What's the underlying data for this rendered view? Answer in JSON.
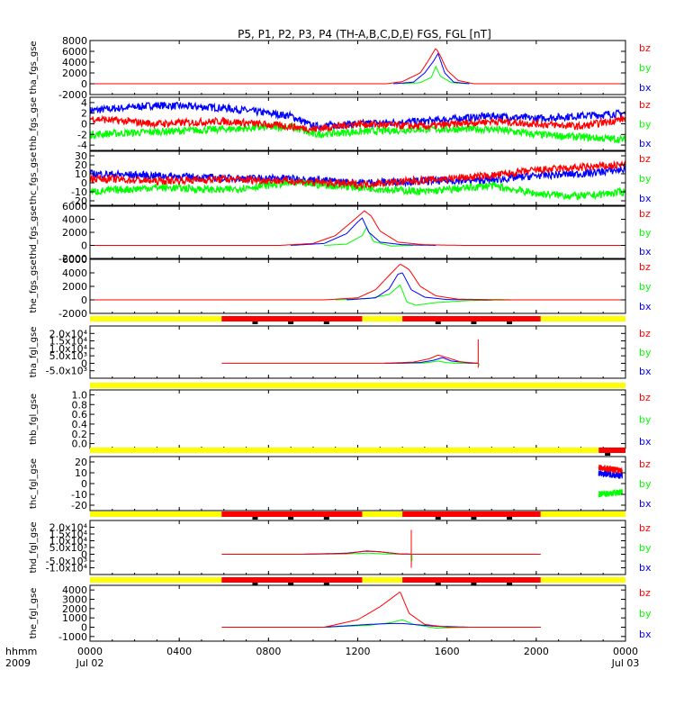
{
  "chart_data": {
    "type": "line",
    "title": "P5, P1, P2, P3, P4 (TH-A,B,C,D,E) FGS, FGL [nT]",
    "x_axis": {
      "corner_labels": [
        "hhmm",
        "2009"
      ],
      "ticks": [
        {
          "t": 0,
          "l1": "0000",
          "l2": "Jul 02"
        },
        {
          "t": 4,
          "l1": "0400",
          "l2": ""
        },
        {
          "t": 8,
          "l1": "0800",
          "l2": ""
        },
        {
          "t": 12,
          "l1": "1200",
          "l2": ""
        },
        {
          "t": 16,
          "l1": "1600",
          "l2": ""
        },
        {
          "t": 20,
          "l1": "2000",
          "l2": ""
        },
        {
          "t": 24,
          "l1": "0000",
          "l2": "Jul 03"
        }
      ],
      "xlim": [
        0,
        24
      ]
    },
    "colors": {
      "bz": "#ff0000",
      "by": "#00ff00",
      "bx": "#0000ff",
      "flag_yellow": "#ffff00",
      "flag_red": "#ff0000"
    },
    "legend": [
      "bz",
      "by",
      "bx"
    ],
    "panels": [
      {
        "label": "tha_fgs_gse",
        "ylim": [
          -2000,
          8000
        ],
        "yticks": [
          "8000",
          "6000",
          "4000",
          "2000",
          "0",
          "-2000"
        ],
        "ytick_values": [
          8000,
          6000,
          4000,
          2000,
          0,
          -2000
        ],
        "kind": "peak",
        "series": [
          {
            "name": "bz",
            "t": [
              13.3,
              14.0,
              14.8,
              15.2,
              15.5,
              15.7,
              16.0,
              16.5,
              17.2
            ],
            "y": [
              0,
              400,
              2000,
              4500,
              6600,
              5200,
              2500,
              600,
              0
            ]
          },
          {
            "name": "bx",
            "t": [
              13.6,
              14.5,
              15.0,
              15.4,
              15.6,
              15.9,
              16.3,
              17.0
            ],
            "y": [
              0,
              300,
              2000,
              4200,
              5600,
              2000,
              300,
              0
            ]
          },
          {
            "name": "by",
            "t": [
              14.0,
              14.8,
              15.3,
              15.5,
              15.7,
              16.2,
              17.0
            ],
            "y": [
              0,
              200,
              1200,
              3200,
              1400,
              200,
              0
            ]
          }
        ]
      },
      {
        "label": "thb_fgs_gse",
        "ylim": [
          -5,
          5
        ],
        "yticks": [
          "4",
          "2",
          "0",
          "-2",
          "-4"
        ],
        "ytick_values": [
          4,
          2,
          0,
          -2,
          -4
        ],
        "kind": "noise",
        "series": [
          {
            "name": "bx",
            "t": [
              0,
              3,
              6,
              9,
              10,
              12,
              15,
              18,
              20,
              22,
              24
            ],
            "y": [
              2.5,
              3.5,
              3,
              1.5,
              -0.5,
              0,
              0.5,
              1.5,
              1,
              1.5,
              2
            ]
          },
          {
            "name": "by",
            "t": [
              0,
              3,
              6,
              9,
              10,
              12,
              15,
              18,
              20,
              22,
              24
            ],
            "y": [
              -2,
              -1.5,
              -1,
              -0.5,
              -2,
              -1.5,
              -1,
              -1,
              -2,
              -2.5,
              -3
            ]
          },
          {
            "name": "bz",
            "t": [
              0,
              3,
              6,
              9,
              10,
              12,
              15,
              18,
              20,
              22,
              24
            ],
            "y": [
              1,
              0,
              0.5,
              -0.5,
              -1,
              0,
              -0.5,
              0.5,
              0,
              -0.5,
              1
            ]
          }
        ]
      },
      {
        "label": "thc_fgs_gse",
        "ylim": [
          -25,
          35
        ],
        "yticks": [
          "30",
          "20",
          "10",
          "0",
          "-10",
          "-20"
        ],
        "ytick_values": [
          30,
          20,
          10,
          0,
          -10,
          -20
        ],
        "kind": "noise",
        "series": [
          {
            "name": "bx",
            "t": [
              0,
              3,
              6,
              9,
              12,
              15,
              18,
              20,
              22,
              24
            ],
            "y": [
              10,
              8,
              5,
              5,
              0,
              2,
              3,
              8,
              10,
              15
            ]
          },
          {
            "name": "by",
            "t": [
              0,
              3,
              6,
              9,
              12,
              15,
              18,
              20,
              22,
              24
            ],
            "y": [
              -10,
              -5,
              -8,
              0,
              -5,
              -10,
              -3,
              -12,
              -15,
              -10
            ]
          },
          {
            "name": "bz",
            "t": [
              0,
              3,
              6,
              9,
              12,
              15,
              18,
              20,
              22,
              24
            ],
            "y": [
              5,
              2,
              4,
              2,
              -2,
              3,
              8,
              14,
              17,
              20
            ]
          }
        ]
      },
      {
        "label": "thd_fgs_gse",
        "ylim": [
          -2000,
          6000
        ],
        "yticks": [
          "6000",
          "4000",
          "2000",
          "0",
          "-2000"
        ],
        "ytick_values": [
          6000,
          4000,
          2000,
          0,
          -2000
        ],
        "kind": "peak",
        "series": [
          {
            "name": "bz",
            "t": [
              8.5,
              10.0,
              11.0,
              11.8,
              12.3,
              12.6,
              13.0,
              13.8,
              15.0,
              16.8
            ],
            "y": [
              0,
              300,
              1500,
              3800,
              5300,
              4500,
              2200,
              500,
              100,
              0
            ]
          },
          {
            "name": "bx",
            "t": [
              9.0,
              10.5,
              11.5,
              12.0,
              12.2,
              12.5,
              13.0,
              14.0,
              15.5
            ],
            "y": [
              0,
              300,
              1800,
              3600,
              4200,
              2000,
              500,
              100,
              0
            ]
          },
          {
            "name": "by",
            "t": [
              10.5,
              11.5,
              12.2,
              12.4,
              12.7,
              13.5,
              14.5
            ],
            "y": [
              0,
              200,
              1500,
              2800,
              600,
              -100,
              0
            ]
          }
        ]
      },
      {
        "label": "the_fgs_gse",
        "ylim": [
          -2000,
          6000
        ],
        "yticks": [
          "6000",
          "4000",
          "2000",
          "0",
          "-2000"
        ],
        "ytick_values": [
          6000,
          4000,
          2000,
          0,
          -2000
        ],
        "kind": "peak",
        "series": [
          {
            "name": "bz",
            "t": [
              10.5,
              12.0,
              12.8,
              13.4,
              13.9,
              14.3,
              14.8,
              15.5,
              16.5,
              19.0
            ],
            "y": [
              0,
              300,
              1500,
              3600,
              5300,
              4500,
              2000,
              600,
              100,
              0
            ]
          },
          {
            "name": "bx",
            "t": [
              11.5,
              12.8,
              13.4,
              13.8,
              14.0,
              14.4,
              15.0,
              16.0,
              18.0
            ],
            "y": [
              0,
              300,
              1600,
              3800,
              4000,
              1500,
              400,
              50,
              0
            ]
          },
          {
            "name": "by",
            "t": [
              11.0,
              12.5,
              13.4,
              13.9,
              14.2,
              14.6,
              15.5,
              17.0,
              19.0
            ],
            "y": [
              0,
              200,
              800,
              2200,
              -300,
              -800,
              -400,
              -100,
              0
            ]
          }
        ]
      },
      {
        "label": "tha_fgl_gse",
        "ylim": [
          -10000,
          25000
        ],
        "yticks": [
          "2.0x10⁴",
          "1.5x10⁴",
          "1.0x10⁴",
          "5.0x10³",
          "0",
          "-5.0x10³"
        ],
        "ytick_values": [
          20000,
          15000,
          10000,
          5000,
          0,
          -5000
        ],
        "kind": "peak",
        "flag_bar": [
          {
            "t0": 0,
            "t1": 5.9,
            "c": "yellow"
          },
          {
            "t0": 5.9,
            "t1": 12.2,
            "c": "red"
          },
          {
            "t0": 12.2,
            "t1": 14.0,
            "c": "yellow"
          },
          {
            "t0": 14.0,
            "t1": 20.2,
            "c": "red"
          },
          {
            "t0": 20.2,
            "t1": 24,
            "c": "yellow"
          }
        ],
        "flag_marks": [
          7.4,
          9.0,
          10.6,
          15.6,
          17.2,
          18.8
        ],
        "red_start": 5.9,
        "red_end": 17.4,
        "blue_start": 13.2,
        "blue_end": 17.4,
        "spike": {
          "t": 17.4,
          "y0": -3000,
          "y1": 16000
        },
        "series": [
          {
            "name": "bz",
            "t": [
              13.2,
              14.5,
              15.2,
              15.6,
              16.0,
              16.6,
              17.4
            ],
            "y": [
              0,
              800,
              3000,
              5500,
              3800,
              1000,
              0
            ]
          },
          {
            "name": "bx",
            "t": [
              13.5,
              14.8,
              15.4,
              15.8,
              16.2,
              17.0,
              17.4
            ],
            "y": [
              0,
              500,
              2000,
              3800,
              1500,
              200,
              0
            ]
          },
          {
            "name": "by",
            "t": [
              14.0,
              15.0,
              15.6,
              16.0,
              16.5,
              17.4
            ],
            "y": [
              0,
              200,
              1500,
              400,
              0,
              0
            ]
          }
        ]
      },
      {
        "label": "thb_fgl_gse",
        "ylim": [
          -0.1,
          1.1
        ],
        "yticks": [
          "1.0",
          "0.8",
          "0.6",
          "0.4",
          "0.2",
          "0.0"
        ],
        "ytick_values": [
          1.0,
          0.8,
          0.6,
          0.4,
          0.2,
          0.0
        ],
        "kind": "empty",
        "flag_bar": [
          {
            "t0": 0,
            "t1": 24,
            "c": "yellow"
          }
        ],
        "flag_marks": [],
        "series": []
      },
      {
        "label": "thc_fgl_gse",
        "ylim": [
          -25,
          25
        ],
        "yticks": [
          "20",
          "10",
          "0",
          "-10",
          "-20"
        ],
        "ytick_values": [
          20,
          10,
          0,
          -10,
          -20
        ],
        "kind": "burst",
        "flag_bar": [
          {
            "t0": 0,
            "t1": 22.8,
            "c": "yellow"
          },
          {
            "t0": 22.8,
            "t1": 24,
            "c": "red"
          }
        ],
        "flag_marks": [
          23.2
        ],
        "burst": {
          "t0": 22.8,
          "t1": 23.85
        },
        "series": [
          {
            "name": "bz",
            "t": [
              22.8,
              23.85
            ],
            "y": [
              15,
              12
            ]
          },
          {
            "name": "bx",
            "t": [
              22.8,
              23.85
            ],
            "y": [
              10,
              7
            ]
          },
          {
            "name": "by",
            "t": [
              22.8,
              23.85
            ],
            "y": [
              -10,
              -8
            ]
          }
        ]
      },
      {
        "label": "thd_fgl_gse",
        "ylim": [
          -15000,
          25000
        ],
        "yticks": [
          "2.0x10⁴",
          "1.5x10⁴",
          "1.0x10⁴",
          "5.0x10³",
          "0",
          "-5.0x10³",
          "-1.0x10⁴"
        ],
        "ytick_values": [
          20000,
          15000,
          10000,
          5000,
          0,
          -5000,
          -10000
        ],
        "kind": "peak",
        "flag_bar": [
          {
            "t0": 0,
            "t1": 5.9,
            "c": "yellow"
          },
          {
            "t0": 5.9,
            "t1": 12.2,
            "c": "red"
          },
          {
            "t0": 12.2,
            "t1": 14.0,
            "c": "yellow"
          },
          {
            "t0": 14.0,
            "t1": 20.2,
            "c": "red"
          },
          {
            "t0": 20.2,
            "t1": 24,
            "c": "yellow"
          }
        ],
        "flag_marks": [
          7.4,
          9.0,
          10.6,
          15.6,
          17.2,
          18.8
        ],
        "red_start": 5.9,
        "red_end": 20.2,
        "blue_start": 9.5,
        "blue_end": 14.5,
        "spike": {
          "t": 14.4,
          "y0": -10000,
          "y1": 18000
        },
        "series": [
          {
            "name": "bz",
            "t": [
              9.5,
              11.5,
              12.4,
              13.0,
              13.8,
              14.4
            ],
            "y": [
              0,
              500,
              2500,
              1800,
              400,
              0
            ]
          },
          {
            "name": "bx",
            "t": [
              9.5,
              11.5,
              12.3,
              12.9,
              13.8,
              14.5
            ],
            "y": [
              0,
              800,
              2200,
              2000,
              300,
              0
            ]
          },
          {
            "name": "by",
            "t": [
              9.5,
              11.5,
              12.5,
              13.2,
              14.5
            ],
            "y": [
              0,
              300,
              800,
              200,
              0
            ]
          }
        ]
      },
      {
        "label": "the_fgl_gse",
        "ylim": [
          -1500,
          4500
        ],
        "yticks": [
          "4000",
          "3000",
          "2000",
          "1000",
          "0",
          "-1000"
        ],
        "ytick_values": [
          4000,
          3000,
          2000,
          1000,
          0,
          -1000
        ],
        "kind": "peak",
        "flag_bar": [
          {
            "t0": 0,
            "t1": 5.9,
            "c": "yellow"
          },
          {
            "t0": 5.9,
            "t1": 12.2,
            "c": "red"
          },
          {
            "t0": 12.2,
            "t1": 14.0,
            "c": "yellow"
          },
          {
            "t0": 14.0,
            "t1": 20.2,
            "c": "red"
          },
          {
            "t0": 20.2,
            "t1": 24,
            "c": "yellow"
          }
        ],
        "flag_marks": [
          7.4,
          9.0,
          10.6,
          15.6,
          17.2,
          18.8
        ],
        "red_start": 5.9,
        "red_end": 20.2,
        "blue_start": 10.5,
        "blue_end": 20.2,
        "series": [
          {
            "name": "bz",
            "t": [
              10.5,
              12.0,
              13.0,
              13.9,
              14.3,
              15.0,
              16.0,
              20.2
            ],
            "y": [
              0,
              800,
              2200,
              3800,
              1500,
              300,
              0,
              0
            ]
          },
          {
            "name": "bx",
            "t": [
              10.5,
              12.5,
              13.5,
              14.0,
              14.5,
              15.5,
              17.0,
              20.2
            ],
            "y": [
              0,
              300,
              400,
              400,
              300,
              100,
              0,
              0
            ]
          },
          {
            "name": "by",
            "t": [
              10.5,
              12.5,
              13.5,
              14.0,
              14.5,
              15.5,
              17.0,
              20.2
            ],
            "y": [
              0,
              200,
              500,
              800,
              300,
              -100,
              0,
              0
            ]
          }
        ]
      }
    ]
  }
}
